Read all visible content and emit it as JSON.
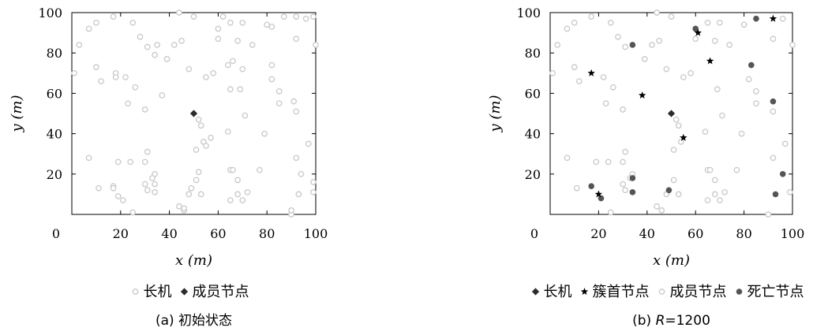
{
  "chart_data": [
    {
      "type": "scatter",
      "caption": "(a) 初始状态",
      "xlabel": "x (m)",
      "ylabel": "y (m)",
      "xlim": [
        0,
        100
      ],
      "ylim": [
        0,
        100
      ],
      "xticks": [
        "0",
        "20",
        "40",
        "60",
        "80",
        "100"
      ],
      "yticks": [
        "20",
        "40",
        "60",
        "80",
        "100"
      ],
      "grid": false,
      "legend": [
        {
          "label": "长机",
          "marker": "open-circle"
        },
        {
          "label": "成员节点",
          "marker": "diamond"
        }
      ],
      "series": [
        {
          "name": "长机",
          "marker": "open-circle",
          "color": "#c8c8c8",
          "points": [
            [
              44,
              100
            ],
            [
              62,
              98
            ],
            [
              87,
              98
            ],
            [
              92,
              98
            ],
            [
              96,
              97
            ],
            [
              99,
              98
            ],
            [
              100,
              84
            ],
            [
              50,
              98
            ],
            [
              17,
              98
            ],
            [
              25,
              95
            ],
            [
              60,
              92
            ],
            [
              65,
              95
            ],
            [
              70,
              95
            ],
            [
              80,
              94
            ],
            [
              10,
              95
            ],
            [
              7,
              92
            ],
            [
              3,
              84
            ],
            [
              28,
              88
            ],
            [
              31,
              83
            ],
            [
              35,
              84
            ],
            [
              42,
              84
            ],
            [
              45,
              86
            ],
            [
              60,
              87
            ],
            [
              68,
              86
            ],
            [
              74,
              84
            ],
            [
              82,
              93
            ],
            [
              92,
              87
            ],
            [
              18,
              70
            ],
            [
              18,
              68
            ],
            [
              12,
              66
            ],
            [
              10,
              73
            ],
            [
              22,
              68
            ],
            [
              34,
              79
            ],
            [
              39,
              77
            ],
            [
              48,
              72
            ],
            [
              55,
              68
            ],
            [
              58,
              70
            ],
            [
              64,
              74
            ],
            [
              66,
              76
            ],
            [
              70,
              72
            ],
            [
              69,
              62
            ],
            [
              65,
              62
            ],
            [
              82,
              74
            ],
            [
              82,
              67
            ],
            [
              85,
              61
            ],
            [
              91,
              56
            ],
            [
              92,
              51
            ],
            [
              85,
              55
            ],
            [
              1,
              70
            ],
            [
              23,
              55
            ],
            [
              26,
              63
            ],
            [
              30,
              52
            ],
            [
              37,
              59
            ],
            [
              71,
              49
            ],
            [
              53,
              44
            ],
            [
              52,
              47
            ],
            [
              54,
              36
            ],
            [
              55,
              34
            ],
            [
              51,
              32
            ],
            [
              57,
              38
            ],
            [
              64,
              41
            ],
            [
              79,
              40
            ],
            [
              97,
              35
            ],
            [
              7,
              28
            ],
            [
              31,
              31
            ],
            [
              19,
              26
            ],
            [
              24,
              26
            ],
            [
              30,
              26
            ],
            [
              34,
              20
            ],
            [
              33,
              18
            ],
            [
              34,
              15
            ],
            [
              17,
              14
            ],
            [
              17,
              13
            ],
            [
              11,
              13
            ],
            [
              19,
              9
            ],
            [
              21,
              7
            ],
            [
              25,
              1
            ],
            [
              31,
              12
            ],
            [
              30,
              15
            ],
            [
              34,
              11
            ],
            [
              44,
              4
            ],
            [
              48,
              10
            ],
            [
              49,
              13
            ],
            [
              51,
              17
            ],
            [
              52,
              21
            ],
            [
              53,
              10
            ],
            [
              65,
              7
            ],
            [
              65,
              22
            ],
            [
              66,
              22
            ],
            [
              68,
              10
            ],
            [
              70,
              7
            ],
            [
              72,
              11
            ],
            [
              68,
              17
            ],
            [
              77,
              22
            ],
            [
              92,
              28
            ],
            [
              94,
              20
            ],
            [
              93,
              10
            ],
            [
              90,
              0
            ],
            [
              90,
              2
            ],
            [
              99,
              11
            ],
            [
              99,
              16
            ],
            [
              46,
              2
            ],
            [
              46,
              3
            ]
          ]
        },
        {
          "name": "成员节点",
          "marker": "diamond",
          "color": "#2b2b2b",
          "points": [
            [
              50,
              50
            ]
          ]
        }
      ]
    },
    {
      "type": "scatter",
      "caption": "(b) R=1200",
      "caption_prefix": "(b) ",
      "caption_var": "R",
      "caption_rest": "=1200",
      "xlabel": "x (m)",
      "ylabel": "y (m)",
      "xlim": [
        0,
        100
      ],
      "ylim": [
        0,
        100
      ],
      "xticks": [
        "0",
        "20",
        "40",
        "60",
        "80",
        "100"
      ],
      "yticks": [
        "20",
        "40",
        "60",
        "80",
        "100"
      ],
      "grid": false,
      "legend": [
        {
          "label": "长机",
          "marker": "diamond"
        },
        {
          "label": "簇首节点",
          "marker": "star"
        },
        {
          "label": "成员节点",
          "marker": "open-circle"
        },
        {
          "label": "死亡节点",
          "marker": "filled-circle"
        }
      ],
      "series": [
        {
          "name": "成员节点",
          "marker": "open-circle",
          "color": "#c8c8c8",
          "points": [
            [
              44,
              100
            ],
            [
              50,
              98
            ],
            [
              17,
              98
            ],
            [
              25,
              95
            ],
            [
              65,
              95
            ],
            [
              70,
              95
            ],
            [
              80,
              94
            ],
            [
              96,
              97
            ],
            [
              100,
              84
            ],
            [
              10,
              95
            ],
            [
              7,
              92
            ],
            [
              3,
              84
            ],
            [
              28,
              88
            ],
            [
              31,
              83
            ],
            [
              42,
              84
            ],
            [
              45,
              86
            ],
            [
              60,
              87
            ],
            [
              68,
              86
            ],
            [
              74,
              84
            ],
            [
              92,
              87
            ],
            [
              12,
              66
            ],
            [
              10,
              73
            ],
            [
              22,
              68
            ],
            [
              39,
              77
            ],
            [
              48,
              72
            ],
            [
              55,
              68
            ],
            [
              58,
              70
            ],
            [
              69,
              62
            ],
            [
              82,
              67
            ],
            [
              85,
              61
            ],
            [
              92,
              51
            ],
            [
              85,
              55
            ],
            [
              1,
              70
            ],
            [
              23,
              55
            ],
            [
              26,
              63
            ],
            [
              30,
              52
            ],
            [
              71,
              49
            ],
            [
              53,
              44
            ],
            [
              52,
              47
            ],
            [
              54,
              36
            ],
            [
              51,
              32
            ],
            [
              64,
              41
            ],
            [
              79,
              40
            ],
            [
              97,
              35
            ],
            [
              7,
              28
            ],
            [
              31,
              31
            ],
            [
              19,
              26
            ],
            [
              24,
              26
            ],
            [
              30,
              26
            ],
            [
              34,
              20
            ],
            [
              33,
              18
            ],
            [
              11,
              13
            ],
            [
              25,
              1
            ],
            [
              31,
              12
            ],
            [
              30,
              15
            ],
            [
              44,
              4
            ],
            [
              48,
              10
            ],
            [
              51,
              17
            ],
            [
              53,
              10
            ],
            [
              65,
              7
            ],
            [
              65,
              22
            ],
            [
              66,
              22
            ],
            [
              68,
              10
            ],
            [
              70,
              7
            ],
            [
              72,
              11
            ],
            [
              68,
              17
            ],
            [
              77,
              22
            ],
            [
              92,
              28
            ],
            [
              90,
              0
            ],
            [
              99,
              11
            ],
            [
              46,
              2
            ]
          ]
        },
        {
          "name": "死亡节点",
          "marker": "filled-circle",
          "color": "#555555",
          "points": [
            [
              60,
              92
            ],
            [
              85,
              97
            ],
            [
              34,
              84
            ],
            [
              83,
              74
            ],
            [
              92,
              56
            ],
            [
              17,
              14
            ],
            [
              21,
              8
            ],
            [
              34,
              11
            ],
            [
              34,
              18
            ],
            [
              49,
              12
            ],
            [
              96,
              20
            ],
            [
              93,
              10
            ]
          ]
        },
        {
          "name": "簇首节点",
          "marker": "star",
          "color": "#000000",
          "points": [
            [
              61,
              90
            ],
            [
              92,
              97
            ],
            [
              66,
              76
            ],
            [
              17,
              70
            ],
            [
              38,
              59
            ],
            [
              55,
              38
            ],
            [
              20,
              10
            ]
          ]
        },
        {
          "name": "长机",
          "marker": "diamond",
          "color": "#2b2b2b",
          "points": [
            [
              50,
              50
            ]
          ]
        }
      ]
    }
  ]
}
